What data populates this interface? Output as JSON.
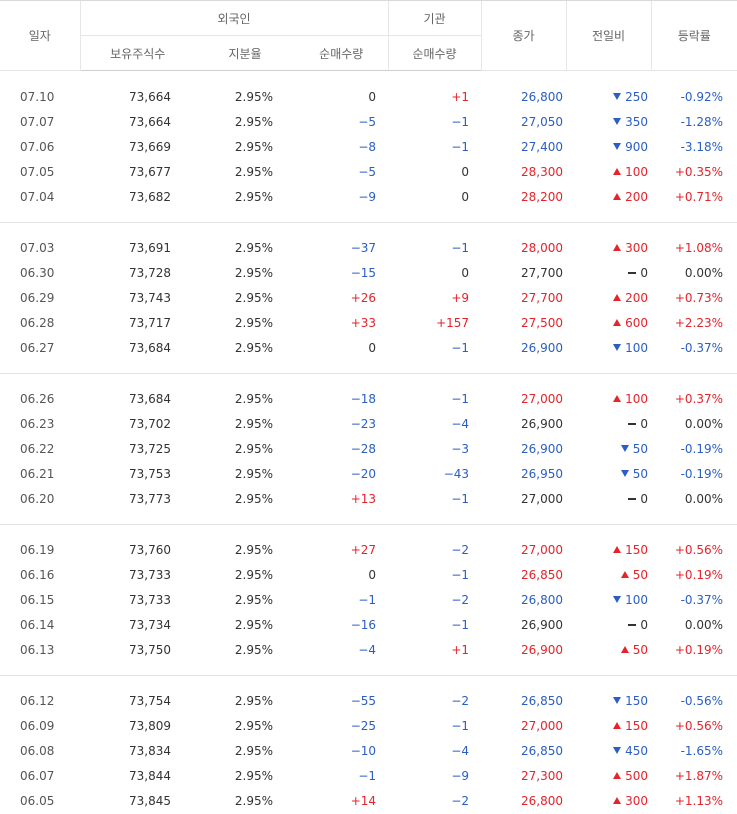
{
  "header": {
    "date": "일자",
    "foreign": "외국인",
    "institution": "기관",
    "close": "종가",
    "change": "전일비",
    "rate": "등락률",
    "holdings": "보유주식수",
    "ratio": "지분율",
    "foreign_net": "순매수량",
    "institution_net": "순매수량"
  },
  "table": {
    "groups": [
      [
        {
          "date": "07.10",
          "holdings": "73,664",
          "ratio": "2.95%",
          "foreign_net": "0",
          "institution_net": "+1",
          "close": "26,800",
          "trend": "down",
          "change": "250",
          "rate": "-0.92%"
        },
        {
          "date": "07.07",
          "holdings": "73,664",
          "ratio": "2.95%",
          "foreign_net": "−5",
          "institution_net": "−1",
          "close": "27,050",
          "trend": "down",
          "change": "350",
          "rate": "-1.28%"
        },
        {
          "date": "07.06",
          "holdings": "73,669",
          "ratio": "2.95%",
          "foreign_net": "−8",
          "institution_net": "−1",
          "close": "27,400",
          "trend": "down",
          "change": "900",
          "rate": "-3.18%"
        },
        {
          "date": "07.05",
          "holdings": "73,677",
          "ratio": "2.95%",
          "foreign_net": "−5",
          "institution_net": "0",
          "close": "28,300",
          "trend": "up",
          "change": "100",
          "rate": "+0.35%"
        },
        {
          "date": "07.04",
          "holdings": "73,682",
          "ratio": "2.95%",
          "foreign_net": "−9",
          "institution_net": "0",
          "close": "28,200",
          "trend": "up",
          "change": "200",
          "rate": "+0.71%"
        }
      ],
      [
        {
          "date": "07.03",
          "holdings": "73,691",
          "ratio": "2.95%",
          "foreign_net": "−37",
          "institution_net": "−1",
          "close": "28,000",
          "trend": "up",
          "change": "300",
          "rate": "+1.08%"
        },
        {
          "date": "06.30",
          "holdings": "73,728",
          "ratio": "2.95%",
          "foreign_net": "−15",
          "institution_net": "0",
          "close": "27,700",
          "trend": "flat",
          "change": "0",
          "rate": "0.00%"
        },
        {
          "date": "06.29",
          "holdings": "73,743",
          "ratio": "2.95%",
          "foreign_net": "+26",
          "institution_net": "+9",
          "close": "27,700",
          "trend": "up",
          "change": "200",
          "rate": "+0.73%"
        },
        {
          "date": "06.28",
          "holdings": "73,717",
          "ratio": "2.95%",
          "foreign_net": "+33",
          "institution_net": "+157",
          "close": "27,500",
          "trend": "up",
          "change": "600",
          "rate": "+2.23%"
        },
        {
          "date": "06.27",
          "holdings": "73,684",
          "ratio": "2.95%",
          "foreign_net": "0",
          "institution_net": "−1",
          "close": "26,900",
          "trend": "down",
          "change": "100",
          "rate": "-0.37%"
        }
      ],
      [
        {
          "date": "06.26",
          "holdings": "73,684",
          "ratio": "2.95%",
          "foreign_net": "−18",
          "institution_net": "−1",
          "close": "27,000",
          "trend": "up",
          "change": "100",
          "rate": "+0.37%"
        },
        {
          "date": "06.23",
          "holdings": "73,702",
          "ratio": "2.95%",
          "foreign_net": "−23",
          "institution_net": "−4",
          "close": "26,900",
          "trend": "flat",
          "change": "0",
          "rate": "0.00%"
        },
        {
          "date": "06.22",
          "holdings": "73,725",
          "ratio": "2.95%",
          "foreign_net": "−28",
          "institution_net": "−3",
          "close": "26,900",
          "trend": "down",
          "change": "50",
          "rate": "-0.19%"
        },
        {
          "date": "06.21",
          "holdings": "73,753",
          "ratio": "2.95%",
          "foreign_net": "−20",
          "institution_net": "−43",
          "close": "26,950",
          "trend": "down",
          "change": "50",
          "rate": "-0.19%"
        },
        {
          "date": "06.20",
          "holdings": "73,773",
          "ratio": "2.95%",
          "foreign_net": "+13",
          "institution_net": "−1",
          "close": "27,000",
          "trend": "flat",
          "change": "0",
          "rate": "0.00%"
        }
      ],
      [
        {
          "date": "06.19",
          "holdings": "73,760",
          "ratio": "2.95%",
          "foreign_net": "+27",
          "institution_net": "−2",
          "close": "27,000",
          "trend": "up",
          "change": "150",
          "rate": "+0.56%"
        },
        {
          "date": "06.16",
          "holdings": "73,733",
          "ratio": "2.95%",
          "foreign_net": "0",
          "institution_net": "−1",
          "close": "26,850",
          "trend": "up",
          "change": "50",
          "rate": "+0.19%"
        },
        {
          "date": "06.15",
          "holdings": "73,733",
          "ratio": "2.95%",
          "foreign_net": "−1",
          "institution_net": "−2",
          "close": "26,800",
          "trend": "down",
          "change": "100",
          "rate": "-0.37%"
        },
        {
          "date": "06.14",
          "holdings": "73,734",
          "ratio": "2.95%",
          "foreign_net": "−16",
          "institution_net": "−1",
          "close": "26,900",
          "trend": "flat",
          "change": "0",
          "rate": "0.00%"
        },
        {
          "date": "06.13",
          "holdings": "73,750",
          "ratio": "2.95%",
          "foreign_net": "−4",
          "institution_net": "+1",
          "close": "26,900",
          "trend": "up",
          "change": "50",
          "rate": "+0.19%"
        }
      ],
      [
        {
          "date": "06.12",
          "holdings": "73,754",
          "ratio": "2.95%",
          "foreign_net": "−55",
          "institution_net": "−2",
          "close": "26,850",
          "trend": "down",
          "change": "150",
          "rate": "-0.56%"
        },
        {
          "date": "06.09",
          "holdings": "73,809",
          "ratio": "2.95%",
          "foreign_net": "−25",
          "institution_net": "−1",
          "close": "27,000",
          "trend": "up",
          "change": "150",
          "rate": "+0.56%"
        },
        {
          "date": "06.08",
          "holdings": "73,834",
          "ratio": "2.95%",
          "foreign_net": "−10",
          "institution_net": "−4",
          "close": "26,850",
          "trend": "down",
          "change": "450",
          "rate": "-1.65%"
        },
        {
          "date": "06.07",
          "holdings": "73,844",
          "ratio": "2.95%",
          "foreign_net": "−1",
          "institution_net": "−9",
          "close": "27,300",
          "trend": "up",
          "change": "500",
          "rate": "+1.87%"
        },
        {
          "date": "06.05",
          "holdings": "73,845",
          "ratio": "2.95%",
          "foreign_net": "+14",
          "institution_net": "−2",
          "close": "26,800",
          "trend": "up",
          "change": "300",
          "rate": "+1.13%"
        }
      ]
    ]
  }
}
